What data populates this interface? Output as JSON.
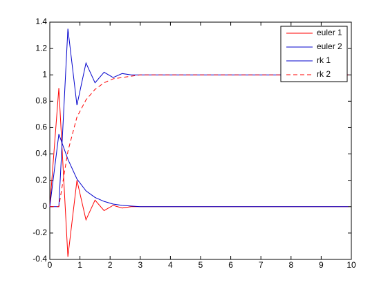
{
  "chart_data": {
    "type": "line",
    "x": [
      0,
      0.3,
      0.6,
      0.9,
      1.2,
      1.5,
      1.8,
      2.1,
      2.4,
      2.7,
      3,
      3.3,
      3.6,
      3.9,
      4.2,
      4.5,
      4.8,
      5.1,
      5.4,
      5.7,
      6,
      6.3,
      6.6,
      6.9,
      7.2,
      7.5,
      7.8,
      8.1,
      8.4,
      8.7,
      9,
      9.3,
      9.6,
      9.9
    ],
    "series": [
      {
        "name": "euler 1",
        "color": "#ff0000",
        "dashed": false,
        "values": [
          0,
          0.9,
          -0.38,
          0.2,
          -0.1,
          0.05,
          -0.03,
          0.01,
          -0.01,
          0,
          0,
          0,
          0,
          0,
          0,
          0,
          0,
          0,
          0,
          0,
          0,
          0,
          0,
          0,
          0,
          0,
          0,
          0,
          0,
          0,
          0,
          0,
          0,
          0
        ]
      },
      {
        "name": "euler 2",
        "color": "#0000cc",
        "dashed": false,
        "values": [
          0,
          0,
          1.35,
          0.77,
          1.09,
          0.94,
          1.02,
          0.98,
          1.01,
          1,
          1,
          1,
          1,
          1,
          1,
          1,
          1,
          1,
          1,
          1,
          1,
          1,
          1,
          1,
          1,
          1,
          1,
          1,
          1,
          1,
          1,
          1,
          1,
          1
        ]
      },
      {
        "name": "rk 1",
        "color": "#0000cc",
        "dashed": false,
        "values": [
          0,
          0.55,
          0.36,
          0.21,
          0.12,
          0.07,
          0.04,
          0.02,
          0.01,
          0.005,
          0,
          0,
          0,
          0,
          0,
          0,
          0,
          0,
          0,
          0,
          0,
          0,
          0,
          0,
          0,
          0,
          0,
          0,
          0,
          0,
          0,
          0,
          0,
          0
        ]
      },
      {
        "name": "rk 2",
        "color": "#ff0000",
        "dashed": true,
        "values": [
          0,
          0,
          0.42,
          0.68,
          0.81,
          0.89,
          0.94,
          0.97,
          0.98,
          0.99,
          1,
          1,
          1,
          1,
          1,
          1,
          1,
          1,
          1,
          1,
          1,
          1,
          1,
          1,
          1,
          1,
          1,
          1,
          1,
          1,
          1,
          1,
          1,
          1
        ]
      }
    ],
    "xlim": [
      0,
      10
    ],
    "xticks": [
      0,
      1,
      2,
      3,
      4,
      5,
      6,
      7,
      8,
      9,
      10
    ],
    "ylim": [
      -0.4,
      1.4
    ],
    "yticks": [
      -0.4,
      -0.2,
      0,
      0.2,
      0.4,
      0.6,
      0.8,
      1,
      1.2,
      1.4
    ],
    "grid": false,
    "legend": "upper right"
  }
}
